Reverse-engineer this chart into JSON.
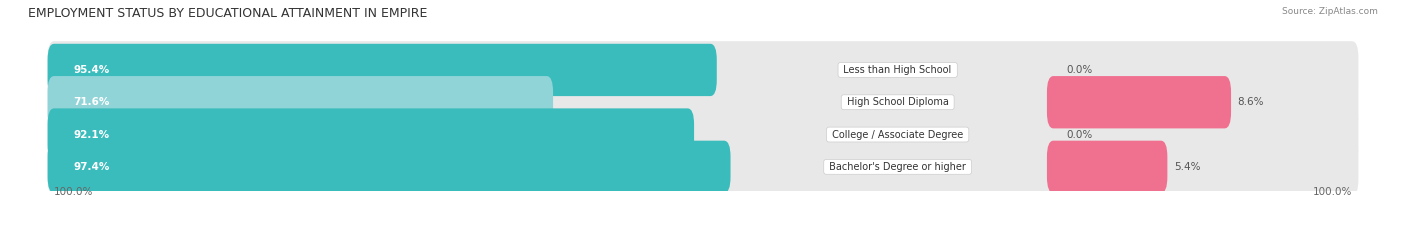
{
  "title": "EMPLOYMENT STATUS BY EDUCATIONAL ATTAINMENT IN EMPIRE",
  "source": "Source: ZipAtlas.com",
  "categories": [
    "Less than High School",
    "High School Diploma",
    "College / Associate Degree",
    "Bachelor's Degree or higher"
  ],
  "in_labor_force": [
    95.4,
    71.6,
    92.1,
    97.4
  ],
  "unemployed": [
    0.0,
    8.6,
    0.0,
    5.4
  ],
  "labor_color_dark": "#3BBCBC",
  "labor_color_light": "#90D4D8",
  "unemployed_color": "#F07090",
  "track_color": "#E8E8E8",
  "x_left_label": "100.0%",
  "x_right_label": "100.0%",
  "fig_width": 14.06,
  "fig_height": 2.33,
  "title_fontsize": 9.0,
  "label_fontsize": 7.5,
  "source_fontsize": 6.5
}
